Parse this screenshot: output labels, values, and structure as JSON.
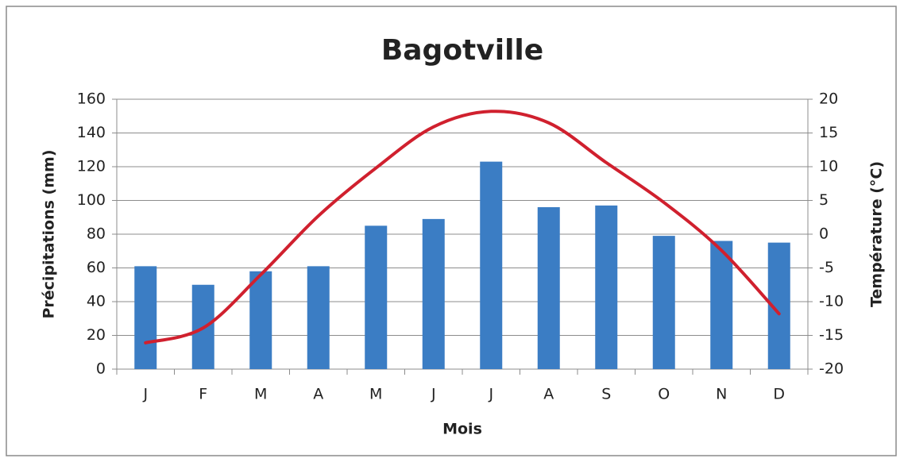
{
  "chart_data": {
    "type": "combo",
    "title": "Bagotville",
    "x_label": "Mois",
    "y_label": "Précipitations (mm)",
    "y2_label": "Température (°C)",
    "categories": [
      "J",
      "F",
      "M",
      "A",
      "M",
      "J",
      "J",
      "A",
      "S",
      "O",
      "N",
      "D"
    ],
    "series": [
      {
        "type": "bar",
        "color": "#3b7dc4",
        "values": [
          61,
          50,
          58,
          61,
          85,
          89,
          123,
          96,
          97,
          79,
          76,
          75
        ]
      },
      {
        "type": "line",
        "axis": "y2",
        "color": "#d0202e",
        "smooth": true,
        "values": [
          -16.1,
          -13.9,
          -6,
          2.7,
          9.8,
          15.9,
          18.2,
          16.5,
          10.6,
          4.7,
          -2.4,
          -11.8
        ]
      }
    ],
    "ylim": [
      0,
      160
    ],
    "yticks": [
      0,
      20,
      40,
      60,
      80,
      100,
      120,
      140,
      160
    ],
    "y2lim": [
      -20,
      20
    ],
    "y2ticks": [
      -20,
      -15,
      -10,
      -5,
      0,
      5,
      10,
      15,
      20
    ],
    "grid": true
  }
}
